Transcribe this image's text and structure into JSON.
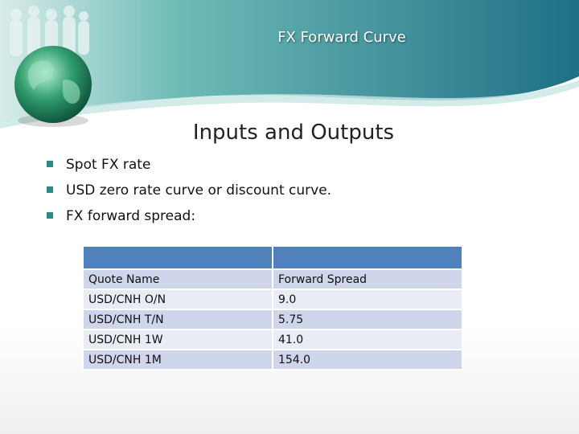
{
  "header": {
    "title": "FX Forward Curve"
  },
  "heading": "Inputs and Outputs",
  "bullets": [
    "Spot FX rate",
    "USD zero rate curve or discount curve.",
    "FX forward spread:"
  ],
  "table": {
    "rows": [
      [
        "Quote Name",
        "Forward Spread"
      ],
      [
        "USD/CNH O/N",
        "9.0"
      ],
      [
        "USD/CNH T/N",
        "5.75"
      ],
      [
        "USD/CNH 1W",
        "41.0"
      ],
      [
        "USD/CNH 1M",
        "154.0"
      ]
    ]
  }
}
